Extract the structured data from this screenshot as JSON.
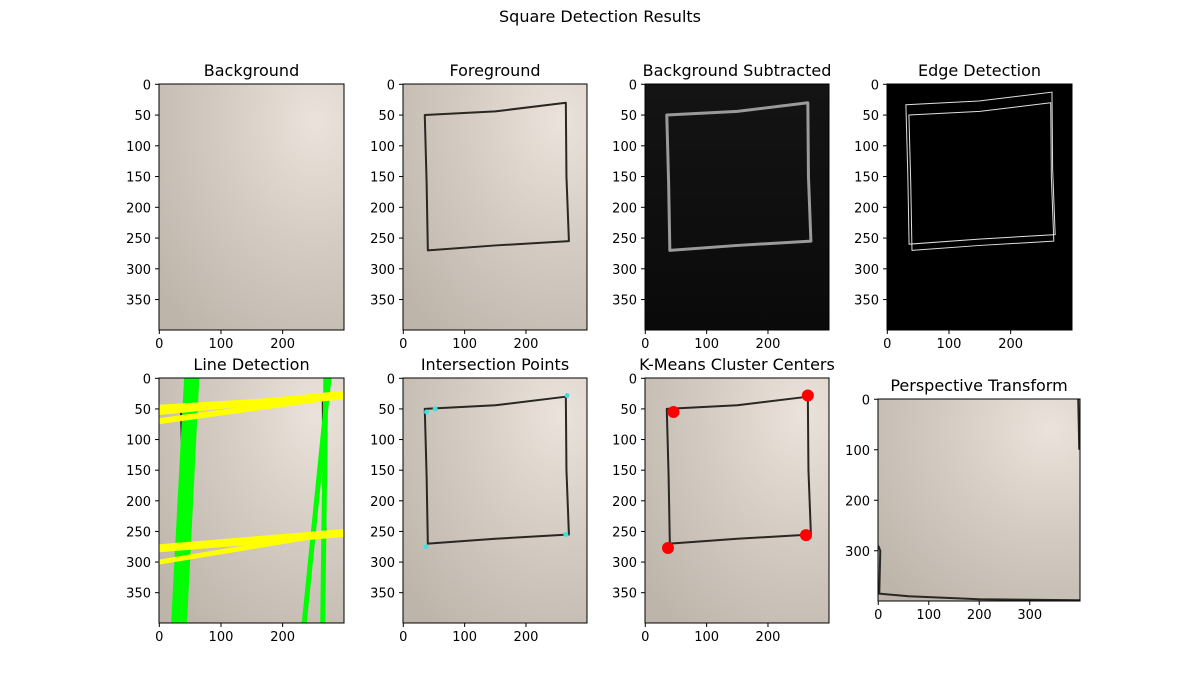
{
  "suptitle": "Square Detection Results",
  "chart_data": [
    {
      "type": "image",
      "title": "Background",
      "xlim": [
        -0.5,
        299.5
      ],
      "ylim": [
        399.5,
        -0.5
      ],
      "xticks": [
        0,
        100,
        200
      ],
      "yticks": [
        0,
        50,
        100,
        150,
        200,
        250,
        300,
        350
      ]
    },
    {
      "type": "image",
      "title": "Foreground",
      "xlim": [
        -0.5,
        299.5
      ],
      "ylim": [
        399.5,
        -0.5
      ],
      "xticks": [
        0,
        100,
        200
      ],
      "yticks": [
        0,
        50,
        100,
        150,
        200,
        250,
        300,
        350
      ]
    },
    {
      "type": "image",
      "title": "Background Subtracted",
      "xlim": [
        -0.5,
        299.5
      ],
      "ylim": [
        399.5,
        -0.5
      ],
      "xticks": [
        0,
        100,
        200
      ],
      "yticks": [
        0,
        50,
        100,
        150,
        200,
        250,
        300,
        350
      ]
    },
    {
      "type": "image",
      "title": "Edge Detection",
      "xlim": [
        -0.5,
        299.5
      ],
      "ylim": [
        399.5,
        -0.5
      ],
      "xticks": [
        0,
        100,
        200
      ],
      "yticks": [
        0,
        50,
        100,
        150,
        200,
        250,
        300,
        350
      ]
    },
    {
      "type": "image",
      "title": "Line Detection",
      "xlim": [
        -0.5,
        299.5
      ],
      "ylim": [
        399.5,
        -0.5
      ],
      "xticks": [
        0,
        100,
        200
      ],
      "yticks": [
        0,
        50,
        100,
        150,
        200,
        250,
        300,
        350
      ]
    },
    {
      "type": "image",
      "title": "Intersection Points",
      "xlim": [
        -0.5,
        299.5
      ],
      "ylim": [
        399.5,
        -0.5
      ],
      "xticks": [
        0,
        100,
        200
      ],
      "yticks": [
        0,
        50,
        100,
        150,
        200,
        250,
        300,
        350
      ],
      "points": {
        "x": [
          38,
          52,
          267,
          265,
          37
        ],
        "y": [
          55,
          50,
          28,
          255,
          275
        ],
        "color": "#40e0e0",
        "marker_size": 2.5
      }
    },
    {
      "type": "image",
      "title": "K-Means Cluster Centers",
      "xlim": [
        -0.5,
        299.5
      ],
      "ylim": [
        399.5,
        -0.5
      ],
      "xticks": [
        0,
        100,
        200
      ],
      "yticks": [
        0,
        50,
        100,
        150,
        200,
        250,
        300,
        350
      ],
      "points": {
        "x": [
          46,
          265,
          37,
          262
        ],
        "y": [
          55,
          28,
          277,
          256
        ],
        "color": "#ff0000",
        "marker_size": 6
      }
    },
    {
      "type": "image",
      "title": "Perspective Transform",
      "xlim": [
        -0.5,
        399.5
      ],
      "ylim": [
        399.5,
        -0.5
      ],
      "xticks": [
        0,
        100,
        200,
        300
      ],
      "yticks": [
        0,
        100,
        200,
        300
      ]
    }
  ]
}
